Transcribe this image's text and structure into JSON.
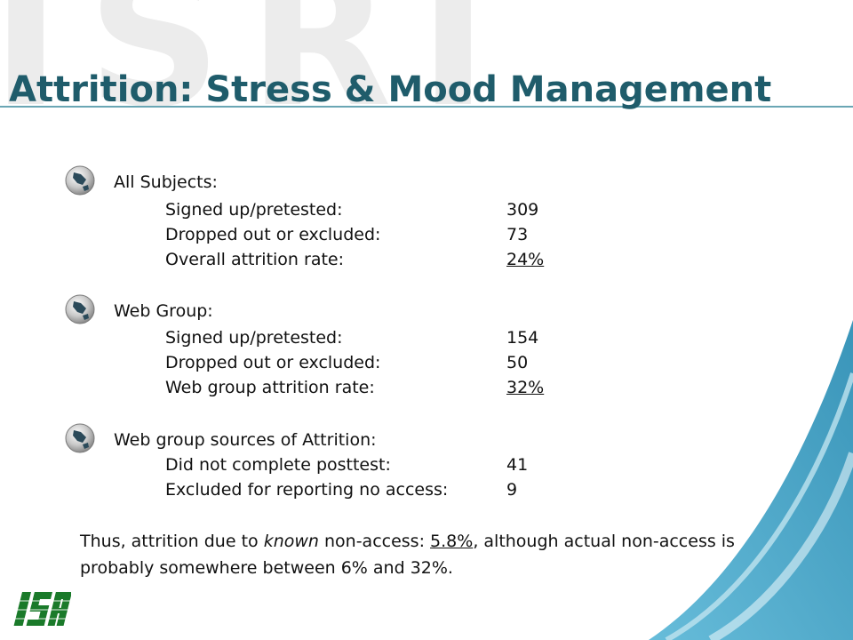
{
  "watermark": "ISRI",
  "title": "Attrition: Stress & Mood Management",
  "sections": [
    {
      "heading": "All Subjects:",
      "rows": [
        {
          "label": "Signed up/pretested:",
          "value": "309"
        },
        {
          "label": "Dropped out or excluded:",
          "value": "73"
        },
        {
          "label": "Overall attrition rate:",
          "value": "24%"
        }
      ]
    },
    {
      "heading": "Web Group:",
      "rows": [
        {
          "label": "Signed up/pretested:",
          "value": "154"
        },
        {
          "label": "Dropped out or excluded:",
          "value": "50"
        },
        {
          "label": "Web group attrition rate:",
          "value": "32%"
        }
      ]
    },
    {
      "heading": "Web group sources of Attrition:",
      "rows": [
        {
          "label": "Did not complete posttest:",
          "value": "41"
        },
        {
          "label": "Excluded for reporting no access:",
          "value": "9"
        }
      ]
    }
  ],
  "summary": {
    "part1": "Thus, attrition due to ",
    "emphasis": "known",
    "part2": " non-access: ",
    "highlight": "5.8%",
    "part3": ", although actual non-access is probably somewhere between 6% and 32%."
  },
  "logo_text": "ISA",
  "colors": {
    "title": "#1f5c6b",
    "accent": "#2f8fb5",
    "logo": "#1a7a2a"
  }
}
